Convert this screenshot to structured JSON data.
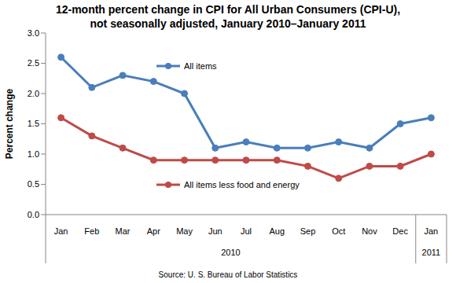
{
  "chart_data": {
    "type": "line",
    "title": "12-month percent change in CPI for All Urban Consumers (CPI-U),",
    "subtitle": "not seasonally adjusted, January 2010–January 2011",
    "y_label": "Percent change",
    "source": "Source: U. S. Bureau of Labor Statistics",
    "categories": [
      "Jan",
      "Feb",
      "Mar",
      "Apr",
      "May",
      "Jun",
      "Jul",
      "Aug",
      "Sep",
      "Oct",
      "Nov",
      "Dec",
      "Jan"
    ],
    "years": [
      "2010",
      "2010",
      "2010",
      "2010",
      "2010",
      "2010",
      "2010",
      "2010",
      "2010",
      "2010",
      "2010",
      "2010",
      "2011"
    ],
    "series": [
      {
        "name": "All items",
        "color": "#4a7ebb",
        "marker": "circle",
        "values": [
          2.6,
          2.1,
          2.3,
          2.2,
          2.0,
          1.1,
          1.2,
          1.1,
          1.1,
          1.2,
          1.1,
          1.5,
          1.6
        ]
      },
      {
        "name": "All items less food and energy",
        "color": "#be4b48",
        "marker": "circle",
        "values": [
          1.6,
          1.3,
          1.1,
          0.9,
          0.9,
          0.9,
          0.9,
          0.9,
          0.8,
          0.6,
          0.8,
          0.8,
          1.0
        ]
      }
    ],
    "ylim": [
      0,
      3
    ],
    "yticks": [
      {
        "value": 0,
        "label": "0.0"
      },
      {
        "value": 0.5,
        "label": "0.5"
      },
      {
        "value": 1,
        "label": "1.0"
      },
      {
        "value": 1.5,
        "label": "1.5"
      },
      {
        "value": 2,
        "label": "2.0"
      },
      {
        "value": 2.5,
        "label": "2.5"
      },
      {
        "value": 3,
        "label": "3.0"
      }
    ],
    "grid": false
  }
}
